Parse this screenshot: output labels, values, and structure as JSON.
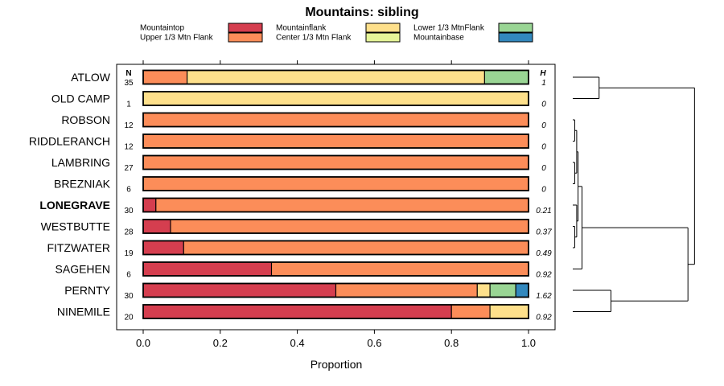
{
  "chart_data": {
    "type": "bar",
    "orientation": "horizontal",
    "stacked": true,
    "title": "Mountains: sibling",
    "xlabel": "Proportion",
    "xlim": [
      0,
      1
    ],
    "xticks": [
      "0.0",
      "0.2",
      "0.4",
      "0.6",
      "0.8",
      "1.0"
    ],
    "n_header": "N",
    "h_header": "H",
    "highlight_category": "LONEGRAVE",
    "legend": {
      "position": "top",
      "entries": [
        {
          "name": "Mountaintop",
          "color": "#d53e4f"
        },
        {
          "name": "Upper 1/3 Mtn Flank",
          "color": "#fc8d59"
        },
        {
          "name": "Mountainflank",
          "color": "#fee08b"
        },
        {
          "name": "Center 1/3 Mtn Flank",
          "color": "#e6f598"
        },
        {
          "name": "Lower 1/3 MtnFlank",
          "color": "#99d594"
        },
        {
          "name": "Mountainbase",
          "color": "#3288bd"
        }
      ]
    },
    "categories": [
      "ATLOW",
      "OLD CAMP",
      "ROBSON",
      "RIDDLERANCH",
      "LAMBRING",
      "BREZNIAK",
      "LONEGRAVE",
      "WESTBUTTE",
      "FITZWATER",
      "SAGEHEN",
      "PERNTY",
      "NINEMILE"
    ],
    "n": [
      "35",
      "1",
      "12",
      "12",
      "27",
      "6",
      "30",
      "28",
      "19",
      "6",
      "30",
      "20"
    ],
    "h": [
      "1",
      "0",
      "0",
      "0",
      "0",
      "0",
      "0.21",
      "0.37",
      "0.49",
      "0.92",
      "1.62",
      "0.92"
    ],
    "series": [
      {
        "name": "Mountaintop",
        "values": [
          0,
          0,
          0,
          0,
          0,
          0,
          0.033,
          0.071,
          0.105,
          0.333,
          0.5,
          0.8
        ]
      },
      {
        "name": "Upper 1/3 Mtn Flank",
        "values": [
          0.114,
          0,
          1,
          1,
          1,
          1,
          0.967,
          0.929,
          0.895,
          0.667,
          0.367,
          0.1
        ]
      },
      {
        "name": "Mountainflank",
        "values": [
          0.772,
          1,
          0,
          0,
          0,
          0,
          0,
          0,
          0,
          0,
          0.033,
          0.1
        ]
      },
      {
        "name": "Center 1/3 Mtn Flank",
        "values": [
          0,
          0,
          0,
          0,
          0,
          0,
          0,
          0,
          0,
          0,
          0,
          0
        ]
      },
      {
        "name": "Lower 1/3 MtnFlank",
        "values": [
          0.114,
          0,
          0,
          0,
          0,
          0,
          0,
          0,
          0,
          0,
          0.067,
          0
        ]
      },
      {
        "name": "Mountainbase",
        "values": [
          0,
          0,
          0,
          0,
          0,
          0,
          0,
          0,
          0,
          0,
          0.033,
          0
        ]
      }
    ],
    "dendrogram": {
      "description": "hierarchical clustering of rows",
      "merges": [
        {
          "a": "ATLOW",
          "b": "OLD CAMP",
          "height": 0.4
        },
        {
          "a": "ROBSON",
          "b": "RIDDLERANCH",
          "height": 0.03
        },
        {
          "a": "LAMBRING",
          "b": "BREZNIAK",
          "height": 0.03
        },
        {
          "a": "ROBSON+RIDDLERANCH",
          "b": "LAMBRING+BREZNIAK",
          "height": 0.06
        },
        {
          "a": "WESTBUTTE",
          "b": "FITZWATER",
          "height": 0.03
        },
        {
          "a": "LONEGRAVE",
          "b": "WESTBUTTE+FITZWATER",
          "height": 0.06
        },
        {
          "a": "ROBSON..BREZNIAK",
          "b": "LONEGRAVE..FITZWATER",
          "height": 0.08
        },
        {
          "a": "ROBSON..FITZWATER",
          "b": "SAGEHEN",
          "height": 0.14
        },
        {
          "a": "PERNTY",
          "b": "NINEMILE",
          "height": 0.58
        },
        {
          "a": "ROBSON..SAGEHEN",
          "b": "PERNTY+NINEMILE",
          "height": 1.75
        },
        {
          "a": "ATLOW+OLD CAMP",
          "b": "ROBSON..NINEMILE",
          "height": 1.85
        }
      ]
    }
  }
}
